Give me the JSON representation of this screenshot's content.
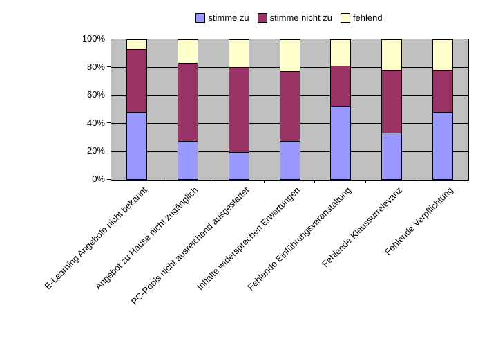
{
  "chart_data": {
    "type": "bar",
    "stacked": true,
    "units": "percent",
    "title": "",
    "categories": [
      "E-Learning Angebote nicht bekannt",
      "Angebot zu Hause nicht zugänglich",
      "PC-Pools nicht ausreichend ausgestattet",
      "Inhalte widersprechen Erwartungen",
      "Fehlende Einführungsveranstaltung",
      "Fehlende Klaussurrelevanz",
      "Fehlende Verpflichtung"
    ],
    "series": [
      {
        "name": "stimme zu",
        "color": "#9999ff",
        "values": [
          48,
          27,
          19,
          27,
          52,
          33,
          48
        ]
      },
      {
        "name": "stimme nicht zu",
        "color": "#993366",
        "values": [
          45,
          56,
          61,
          50,
          29,
          45,
          30
        ]
      },
      {
        "name": "fehlend",
        "color": "#ffffcc",
        "values": [
          7,
          17,
          20,
          23,
          19,
          22,
          22
        ]
      }
    ],
    "y_axis": {
      "min": 0,
      "max": 100,
      "tick_labels": [
        "0%",
        "20%",
        "40%",
        "60%",
        "80%",
        "100%"
      ]
    },
    "legend_position": "top",
    "plot_background": "#c0c0c0",
    "gridline_color": "#000000",
    "grid": true
  }
}
